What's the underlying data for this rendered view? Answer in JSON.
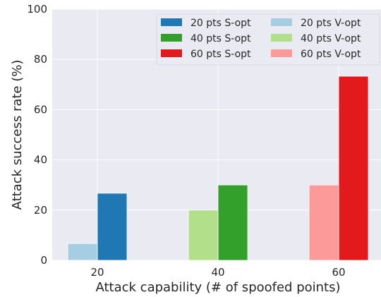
{
  "chart_data": {
    "type": "bar",
    "categories": [
      "20",
      "40",
      "60"
    ],
    "xlabel": "Attack capability (# of spoofed points)",
    "ylabel": "Attack success rate (%)",
    "ylim": [
      0,
      100
    ],
    "yticks": [
      "0",
      "20",
      "40",
      "60",
      "80",
      "100"
    ],
    "grid": true,
    "legend_position": "top-right",
    "series": [
      {
        "name": "20 pts S-opt",
        "color": "#1f78b4",
        "values": [
          26.7,
          null,
          null
        ]
      },
      {
        "name": "40 pts S-opt",
        "color": "#33a02c",
        "values": [
          null,
          30,
          null
        ]
      },
      {
        "name": "60 pts S-opt",
        "color": "#e31a1c",
        "values": [
          null,
          null,
          73.3
        ]
      },
      {
        "name": "20 pts V-opt",
        "color": "#a6cee3",
        "values": [
          6.7,
          null,
          null
        ]
      },
      {
        "name": "40 pts V-opt",
        "color": "#b2df8a",
        "values": [
          null,
          20,
          null
        ]
      },
      {
        "name": "60 pts V-opt",
        "color": "#fb9a99",
        "values": [
          null,
          null,
          30
        ]
      }
    ]
  }
}
